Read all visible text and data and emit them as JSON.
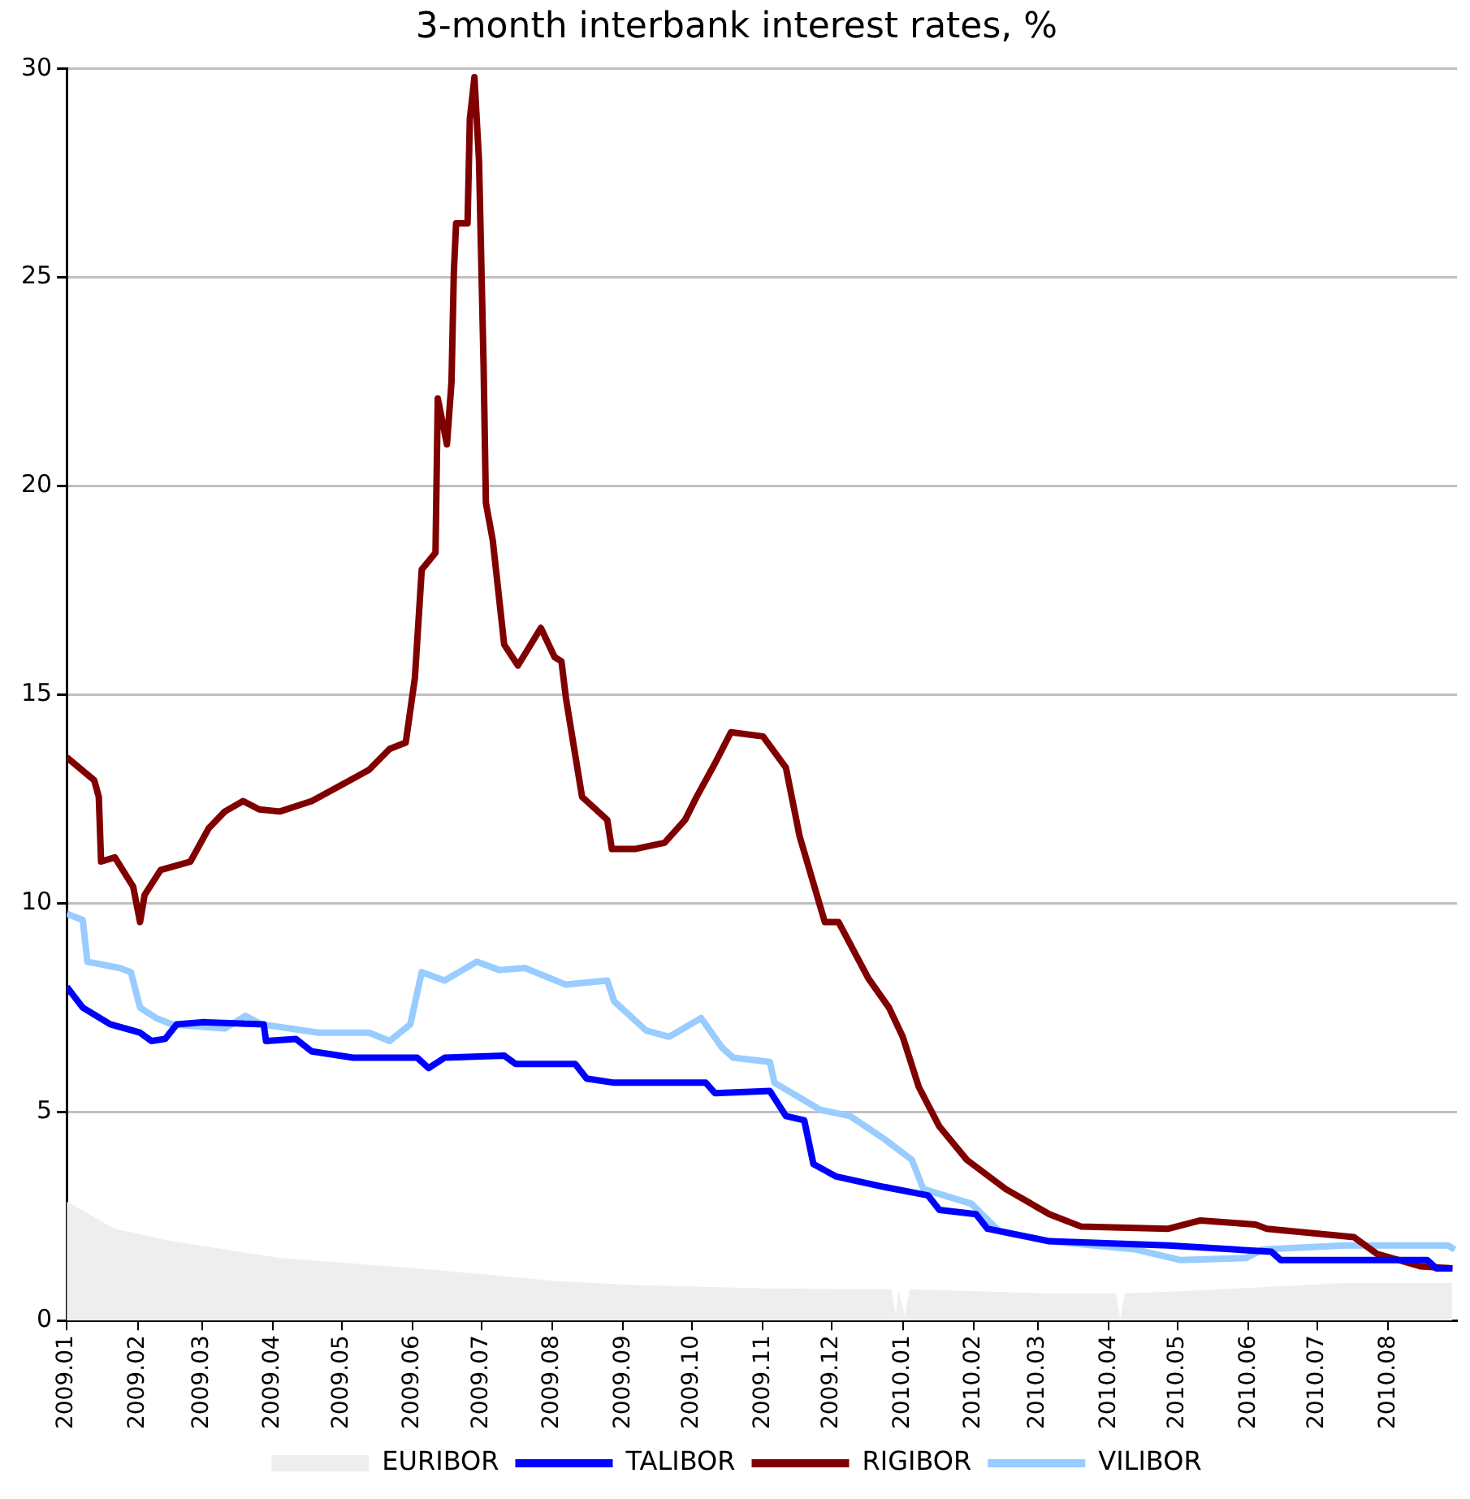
{
  "chart_data": {
    "type": "line",
    "title": "3-month interbank interest rates, %",
    "xlim": [
      "2009-01-01",
      "2010-08-31"
    ],
    "xticks": [
      {
        "value": "2009-01",
        "label": "2009.01"
      },
      {
        "value": "2009-02",
        "label": "2009.02"
      },
      {
        "value": "2009-03",
        "label": "2009.03"
      },
      {
        "value": "2009-04",
        "label": "2009.04"
      },
      {
        "value": "2009-05",
        "label": "2009.05"
      },
      {
        "value": "2009-06",
        "label": "2009.06"
      },
      {
        "value": "2009-07",
        "label": "2009.07"
      },
      {
        "value": "2009-08",
        "label": "2009.08"
      },
      {
        "value": "2009-09",
        "label": "2009.09"
      },
      {
        "value": "2009-10",
        "label": "2009.10"
      },
      {
        "value": "2009-11",
        "label": "2009.11"
      },
      {
        "value": "2009-12",
        "label": "2009.12"
      },
      {
        "value": "2010-01",
        "label": "2010.01"
      },
      {
        "value": "2010-02",
        "label": "2010.02"
      },
      {
        "value": "2010-03",
        "label": "2010.03"
      },
      {
        "value": "2010-04",
        "label": "2010.04"
      },
      {
        "value": "2010-05",
        "label": "2010.05"
      },
      {
        "value": "2010-06",
        "label": "2010.06"
      },
      {
        "value": "2010-07",
        "label": "2010.07"
      },
      {
        "value": "2010-08",
        "label": "2010.08"
      }
    ],
    "ylim": [
      0,
      30
    ],
    "yticks": [
      0,
      5,
      10,
      15,
      20,
      25,
      30
    ],
    "grid": "y",
    "legend": "bottom",
    "marker": "none",
    "series": [
      {
        "name": "EURIBOR",
        "type": "area",
        "color": "#eeeeee",
        "x": [
          "2009-01-01",
          "2009-01-22",
          "2009-02-16",
          "2009-04-04",
          "2009-06-03",
          "2009-07-04",
          "2009-08-02",
          "2009-09-06",
          "2009-11-03",
          "2009-12-27",
          "2009-12-29",
          "2009-12-30",
          "2010-01-02",
          "2010-01-04",
          "2010-03-06",
          "2010-04-04",
          "2010-04-06",
          "2010-04-08",
          "2010-05-02",
          "2010-07-13",
          "2010-08-29"
        ],
        "values": [
          2.85,
          2.2,
          1.9,
          1.5,
          1.25,
          1.1,
          0.95,
          0.85,
          0.77,
          0.75,
          0.1,
          0.75,
          0.1,
          0.75,
          0.65,
          0.65,
          0.05,
          0.65,
          0.7,
          0.9,
          0.9
        ]
      },
      {
        "name": "TALIBOR",
        "type": "line",
        "color": "#0000ff",
        "x": [
          "2009-01-01",
          "2009-01-08",
          "2009-01-20",
          "2009-02-02",
          "2009-02-07",
          "2009-02-13",
          "2009-02-18",
          "2009-03-02",
          "2009-03-28",
          "2009-03-29",
          "2009-04-11",
          "2009-04-18",
          "2009-05-06",
          "2009-06-03",
          "2009-06-08",
          "2009-06-15",
          "2009-07-11",
          "2009-07-16",
          "2009-08-11",
          "2009-08-16",
          "2009-08-28",
          "2009-10-07",
          "2009-10-11",
          "2009-11-04",
          "2009-11-11",
          "2009-11-19",
          "2009-11-23",
          "2009-12-03",
          "2009-12-24",
          "2010-01-12",
          "2010-01-17",
          "2010-02-02",
          "2010-02-07",
          "2010-03-06",
          "2010-04-27",
          "2010-06-11",
          "2010-06-15",
          "2010-08-18",
          "2010-08-22",
          "2010-08-29"
        ],
        "values": [
          8.0,
          7.5,
          7.1,
          6.9,
          6.7,
          6.75,
          7.1,
          7.15,
          7.1,
          6.7,
          6.75,
          6.45,
          6.3,
          6.3,
          6.05,
          6.3,
          6.35,
          6.15,
          6.15,
          5.8,
          5.7,
          5.7,
          5.45,
          5.5,
          4.9,
          4.8,
          3.75,
          3.45,
          3.2,
          3.0,
          2.65,
          2.55,
          2.2,
          1.9,
          1.8,
          1.65,
          1.45,
          1.45,
          1.25,
          1.25
        ]
      },
      {
        "name": "RIGIBOR",
        "type": "line",
        "color": "#800000",
        "x": [
          "2009-01-01",
          "2009-01-13",
          "2009-01-15",
          "2009-01-16",
          "2009-01-22",
          "2009-01-30",
          "2009-02-02",
          "2009-02-04",
          "2009-02-11",
          "2009-02-24",
          "2009-03-04",
          "2009-03-11",
          "2009-03-19",
          "2009-03-26",
          "2009-04-04",
          "2009-04-18",
          "2009-05-03",
          "2009-05-13",
          "2009-05-22",
          "2009-05-29",
          "2009-06-02",
          "2009-06-05",
          "2009-06-11",
          "2009-06-12",
          "2009-06-16",
          "2009-06-18",
          "2009-06-19",
          "2009-06-20",
          "2009-06-25",
          "2009-06-26",
          "2009-06-28",
          "2009-06-30",
          "2009-07-02",
          "2009-07-03",
          "2009-07-06",
          "2009-07-09",
          "2009-07-11",
          "2009-07-17",
          "2009-07-27",
          "2009-08-02",
          "2009-08-05",
          "2009-08-07",
          "2009-08-14",
          "2009-08-25",
          "2009-08-27",
          "2009-09-06",
          "2009-09-19",
          "2009-09-28",
          "2009-10-03",
          "2009-10-11",
          "2009-10-18",
          "2009-11-01",
          "2009-11-11",
          "2009-11-17",
          "2009-11-28",
          "2009-12-04",
          "2009-12-17",
          "2009-12-26",
          "2010-01-01",
          "2010-01-08",
          "2010-01-17",
          "2010-01-29",
          "2010-02-15",
          "2010-03-06",
          "2010-03-20",
          "2010-04-27",
          "2010-05-11",
          "2010-06-04",
          "2010-06-09",
          "2010-07-17",
          "2010-07-27",
          "2010-08-15",
          "2010-08-29"
        ],
        "values": [
          13.5,
          12.95,
          12.55,
          11.0,
          11.1,
          10.4,
          9.55,
          10.2,
          10.8,
          11.0,
          11.8,
          12.2,
          12.45,
          12.25,
          12.2,
          12.45,
          12.9,
          13.2,
          13.7,
          13.85,
          15.4,
          18.0,
          18.4,
          22.1,
          21.0,
          22.5,
          25.1,
          26.3,
          26.3,
          28.8,
          29.8,
          27.8,
          22.9,
          19.6,
          18.7,
          17.2,
          16.2,
          15.7,
          16.6,
          15.9,
          15.8,
          14.9,
          12.55,
          12.0,
          11.3,
          11.3,
          11.45,
          12.0,
          12.55,
          13.35,
          14.1,
          14.0,
          13.25,
          11.6,
          9.55,
          9.55,
          8.2,
          7.5,
          6.8,
          5.6,
          4.65,
          3.85,
          3.15,
          2.55,
          2.25,
          2.2,
          2.4,
          2.3,
          2.2,
          2.0,
          1.6,
          1.3,
          1.25
        ]
      },
      {
        "name": "VILIBOR",
        "type": "line",
        "color": "#99ccff",
        "x": [
          "2009-01-01",
          "2009-01-08",
          "2009-01-10",
          "2009-01-24",
          "2009-01-29",
          "2009-02-02",
          "2009-02-09",
          "2009-02-16",
          "2009-03-11",
          "2009-03-20",
          "2009-03-27",
          "2009-04-21",
          "2009-05-13",
          "2009-05-22",
          "2009-05-31",
          "2009-06-05",
          "2009-06-15",
          "2009-06-29",
          "2009-07-09",
          "2009-07-20",
          "2009-08-07",
          "2009-08-25",
          "2009-08-28",
          "2009-09-11",
          "2009-09-21",
          "2009-10-05",
          "2009-10-14",
          "2009-10-19",
          "2009-11-04",
          "2009-11-06",
          "2009-11-26",
          "2009-12-09",
          "2009-12-24",
          "2010-01-05",
          "2010-01-10",
          "2010-01-31",
          "2010-02-12",
          "2010-03-06",
          "2010-04-13",
          "2010-05-02",
          "2010-05-31",
          "2010-06-07",
          "2010-07-13",
          "2010-08-27",
          "2010-08-30"
        ],
        "values": [
          9.75,
          9.6,
          8.6,
          8.45,
          8.35,
          7.5,
          7.25,
          7.1,
          7.0,
          7.3,
          7.1,
          6.9,
          6.9,
          6.7,
          7.1,
          8.35,
          8.15,
          8.6,
          8.4,
          8.45,
          8.05,
          8.15,
          7.65,
          6.95,
          6.8,
          7.25,
          6.55,
          6.3,
          6.2,
          5.7,
          5.05,
          4.9,
          4.35,
          3.85,
          3.15,
          2.8,
          2.15,
          1.9,
          1.7,
          1.45,
          1.5,
          1.7,
          1.8,
          1.8,
          1.7
        ]
      }
    ]
  }
}
